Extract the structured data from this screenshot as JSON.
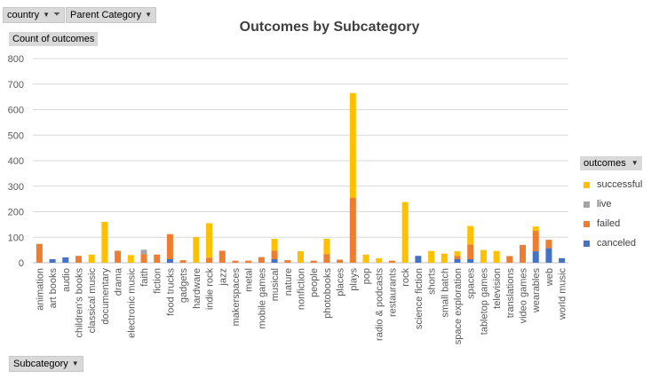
{
  "filters": {
    "country": "country",
    "parent_category": "Parent Category"
  },
  "value_field": "Count of outcomes",
  "axis_field": "Subcategory",
  "legend_field": "outcomes",
  "colors": {
    "successful": "#ffc000",
    "live": "#a5a5a5",
    "failed": "#ed7d31",
    "canceled": "#4472c4"
  },
  "chart_data": {
    "type": "bar",
    "stacked": true,
    "title": "Outcomes by Subcategory",
    "xlabel": "",
    "ylabel": "",
    "ylim": [
      0,
      800
    ],
    "yticks": [
      0,
      100,
      200,
      300,
      400,
      500,
      600,
      700,
      800
    ],
    "grid": true,
    "legend_position": "right",
    "categories": [
      "animation",
      "art books",
      "audio",
      "children's books",
      "classical music",
      "documentary",
      "drama",
      "electronic music",
      "faith",
      "fiction",
      "food trucks",
      "gadgets",
      "hardware",
      "indie rock",
      "jazz",
      "makerspaces",
      "metal",
      "mobile games",
      "musical",
      "nature",
      "nonfiction",
      "people",
      "photobooks",
      "places",
      "plays",
      "pop",
      "radio & podcasts",
      "restaurants",
      "rock",
      "science fiction",
      "shorts",
      "small batch",
      "space exploration",
      "spaces",
      "tabletop games",
      "television",
      "translations",
      "video games",
      "wearables",
      "web",
      "world music"
    ],
    "series": [
      {
        "name": "canceled",
        "values": [
          0,
          14,
          21,
          0,
          0,
          0,
          0,
          0,
          0,
          0,
          14,
          0,
          0,
          0,
          0,
          0,
          0,
          0,
          14,
          0,
          0,
          0,
          0,
          0,
          0,
          0,
          0,
          0,
          0,
          27,
          0,
          0,
          14,
          14,
          0,
          0,
          0,
          0,
          45,
          57,
          18
        ]
      },
      {
        "name": "failed",
        "values": [
          74,
          0,
          0,
          27,
          0,
          0,
          47,
          0,
          34,
          32,
          98,
          10,
          0,
          20,
          47,
          8,
          8,
          22,
          34,
          10,
          0,
          8,
          34,
          12,
          255,
          0,
          0,
          8,
          0,
          0,
          0,
          0,
          13,
          58,
          0,
          0,
          26,
          70,
          80,
          33,
          0
        ]
      },
      {
        "name": "live",
        "values": [
          0,
          0,
          0,
          0,
          0,
          0,
          0,
          0,
          17,
          0,
          0,
          0,
          0,
          0,
          0,
          0,
          0,
          0,
          0,
          0,
          0,
          0,
          0,
          0,
          0,
          0,
          0,
          0,
          0,
          0,
          0,
          0,
          0,
          0,
          0,
          0,
          0,
          0,
          0,
          0,
          0
        ]
      },
      {
        "name": "successful",
        "values": [
          0,
          0,
          0,
          0,
          32,
          160,
          0,
          30,
          0,
          0,
          0,
          0,
          100,
          135,
          0,
          0,
          0,
          0,
          46,
          0,
          45,
          0,
          60,
          0,
          410,
          32,
          18,
          0,
          238,
          0,
          46,
          36,
          18,
          72,
          50,
          46,
          0,
          0,
          17,
          0,
          0
        ]
      }
    ]
  }
}
